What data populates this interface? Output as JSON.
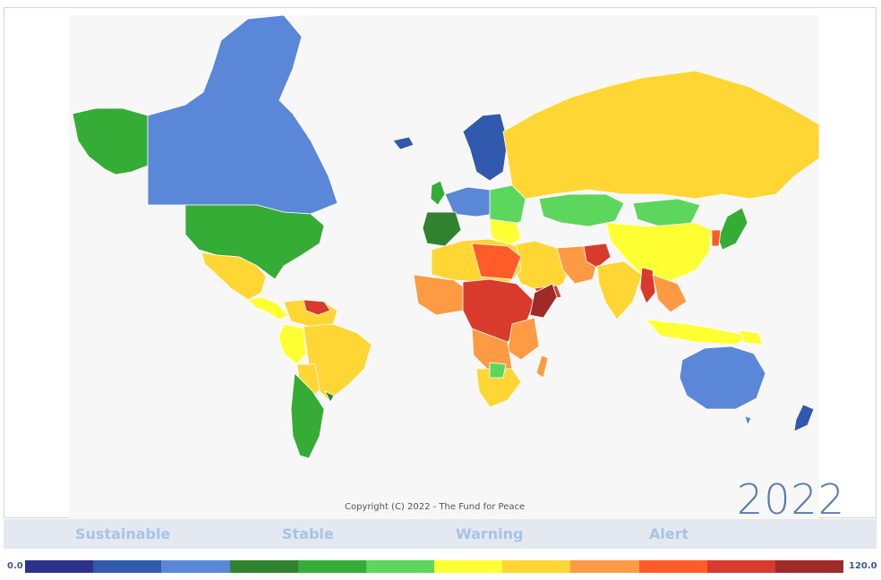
{
  "map": {
    "copyright": "Copyright (C) 2022 - The Fund for Peace",
    "year": "2022",
    "categories": [
      "Sustainable",
      "Stable",
      "Warning",
      "Alert"
    ],
    "scale_min": "0.0",
    "scale_max": "120.0",
    "scale_colors": [
      "#2e318a",
      "#3159ad",
      "#5b87d8",
      "#31822f",
      "#35ac35",
      "#5dd65d",
      "#ffff33",
      "#ffd633",
      "#ff9a44",
      "#ff5c2a",
      "#d83a2c",
      "#9e2b28"
    ]
  }
}
